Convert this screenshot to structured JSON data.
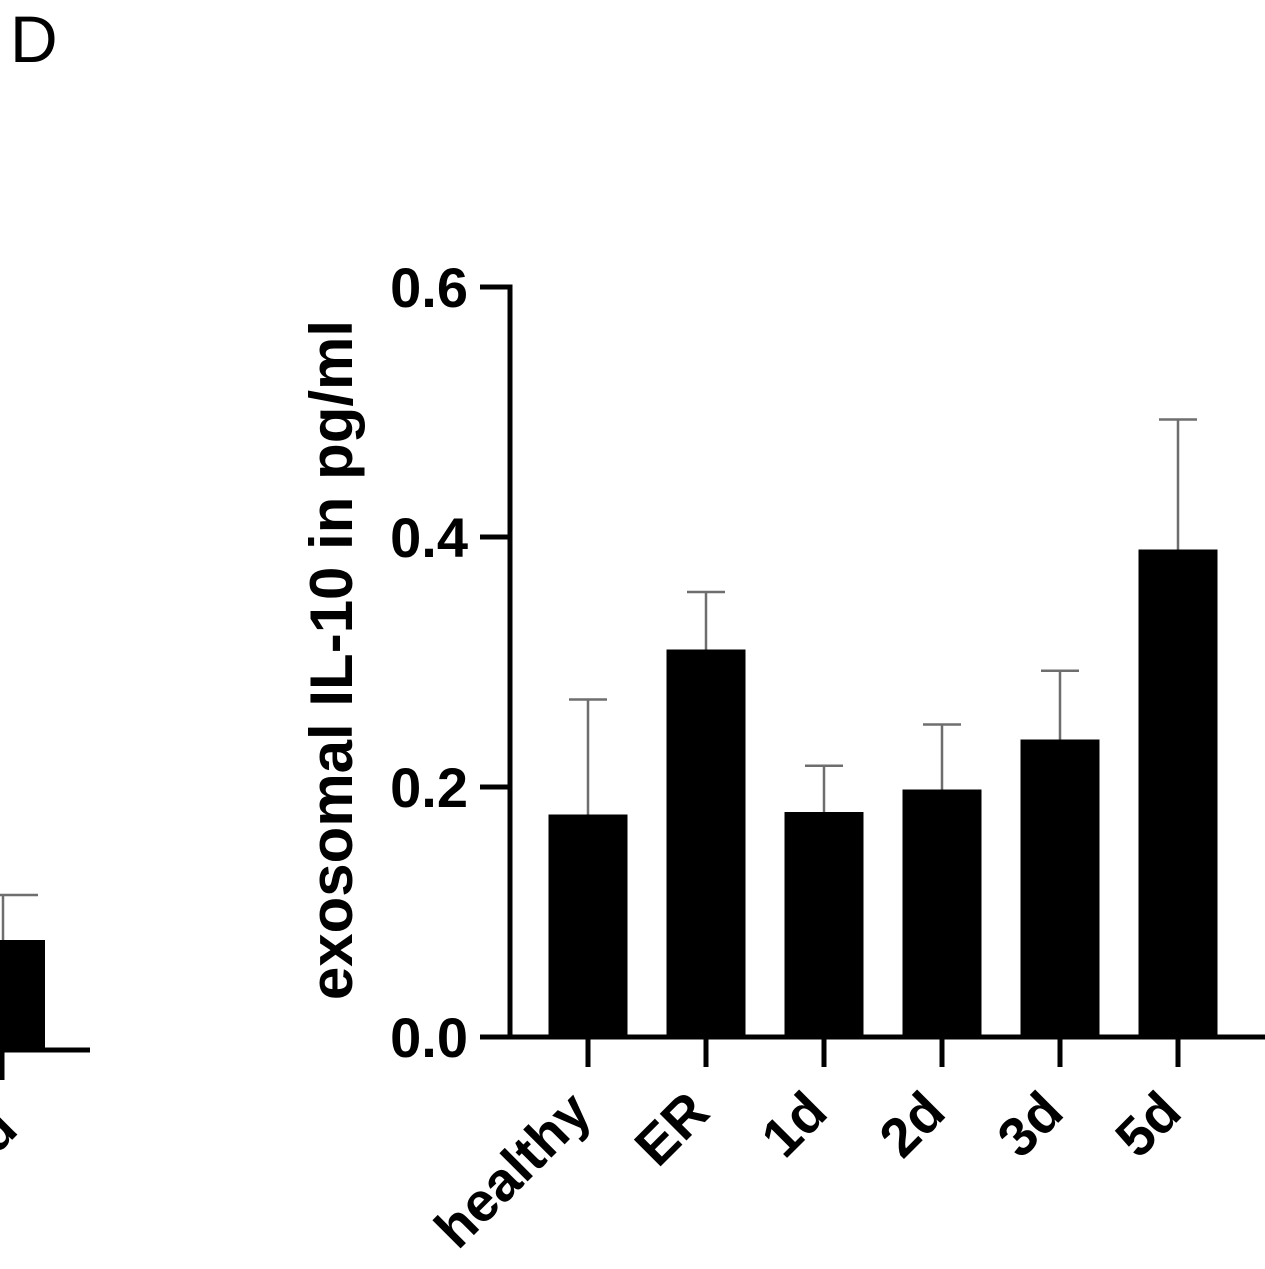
{
  "panel_label": "D",
  "partial_panel": {
    "visible_tick_label": "d"
  },
  "chart_data": {
    "type": "bar",
    "ylabel": "exosomal IL-10 in pg/ml",
    "categories": [
      "healthy",
      "ER",
      "1d",
      "2d",
      "3d",
      "5d"
    ],
    "values": [
      0.178,
      0.31,
      0.18,
      0.198,
      0.238,
      0.39
    ],
    "errors": [
      0.092,
      0.046,
      0.037,
      0.052,
      0.055,
      0.104
    ],
    "ylim": [
      0,
      0.6
    ],
    "yticks": [
      "0.0",
      "0.2",
      "0.4",
      "0.6"
    ],
    "grid": false,
    "bar_color": "#000000",
    "error_bar_color": "#6e6e6e"
  }
}
